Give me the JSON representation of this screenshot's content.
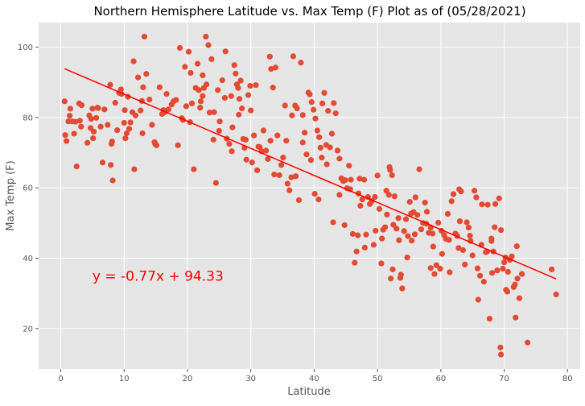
{
  "chart_data": {
    "type": "scatter",
    "title": "Northern Hemisphere Latitude vs. Max Temp (F) Plot as of (05/28/2021)",
    "xlabel": "Latitude",
    "ylabel": "Max Temp (F)",
    "xlim": [
      -3.5,
      82
    ],
    "ylim": [
      8.5,
      107
    ],
    "xticks": [
      0,
      10,
      20,
      30,
      40,
      50,
      60,
      70,
      80
    ],
    "yticks": [
      20,
      40,
      60,
      80,
      100
    ],
    "grid": true,
    "background": "#e5e5e5",
    "point_color": "#e24a33",
    "line_color": "#ff0000",
    "regression": {
      "slope": -0.77,
      "intercept": 94.33,
      "x_range": [
        0.6,
        78.2
      ]
    },
    "equation_label": "y = -0.77x + 94.33",
    "equation_position": {
      "x": 5,
      "y": 35
    },
    "points": [
      [
        0.6,
        84.6
      ],
      [
        0.7,
        75.0
      ],
      [
        0.9,
        73.3
      ],
      [
        1.2,
        78.9
      ],
      [
        1.4,
        80.5
      ],
      [
        1.5,
        82.5
      ],
      [
        1.8,
        78.9
      ],
      [
        2.1,
        75.4
      ],
      [
        2.3,
        78.8
      ],
      [
        2.5,
        66.1
      ],
      [
        2.9,
        84.0
      ],
      [
        3.3,
        83.5
      ],
      [
        3.2,
        77.4
      ],
      [
        4.2,
        72.8
      ],
      [
        4.5,
        80.6
      ],
      [
        4.7,
        77.0
      ],
      [
        4.8,
        79.6
      ],
      [
        5.0,
        82.5
      ],
      [
        5.1,
        74.1
      ],
      [
        5.2,
        76.0
      ],
      [
        5.6,
        79.9
      ],
      [
        5.9,
        82.7
      ],
      [
        6.6,
        67.2
      ],
      [
        6.9,
        82.3
      ],
      [
        7.4,
        77.9
      ],
      [
        7.8,
        89.3
      ],
      [
        7.9,
        66.5
      ],
      [
        8.0,
        72.5
      ],
      [
        8.1,
        73.2
      ],
      [
        8.2,
        62.1
      ],
      [
        8.6,
        84.2
      ],
      [
        8.9,
        76.4
      ],
      [
        9.2,
        87.0
      ],
      [
        9.5,
        88.0
      ],
      [
        10.1,
        82.1
      ],
      [
        10.2,
        74.1
      ],
      [
        10.6,
        85.9
      ],
      [
        10.8,
        76.8
      ],
      [
        10.4,
        75.5
      ],
      [
        11.0,
        78.6
      ],
      [
        11.5,
        96.0
      ],
      [
        11.3,
        81.5
      ],
      [
        11.8,
        80.6
      ],
      [
        11.6,
        65.3
      ],
      [
        12.2,
        91.4
      ],
      [
        12.6,
        82.0
      ],
      [
        12.8,
        84.7
      ],
      [
        13.2,
        103.0
      ],
      [
        13.0,
        88.6
      ],
      [
        13.5,
        92.4
      ],
      [
        14.0,
        85.1
      ],
      [
        14.4,
        77.9
      ],
      [
        14.8,
        73.0
      ],
      [
        14.9,
        72.5
      ],
      [
        15.6,
        88.6
      ],
      [
        16.0,
        81.0
      ],
      [
        16.4,
        81.5
      ],
      [
        16.7,
        86.7
      ],
      [
        17.0,
        82.3
      ],
      [
        17.5,
        83.7
      ],
      [
        17.8,
        84.6
      ],
      [
        18.2,
        85.0
      ],
      [
        18.5,
        72.1
      ],
      [
        18.8,
        99.8
      ],
      [
        19.1,
        79.8
      ],
      [
        19.6,
        94.4
      ],
      [
        19.8,
        83.2
      ],
      [
        20.2,
        98.7
      ],
      [
        20.5,
        92.7
      ],
      [
        20.7,
        84.0
      ],
      [
        20.4,
        78.7
      ],
      [
        21.0,
        65.3
      ],
      [
        21.3,
        88.4
      ],
      [
        21.6,
        95.3
      ],
      [
        21.8,
        87.8
      ],
      [
        22.1,
        84.6
      ],
      [
        22.4,
        92.0
      ],
      [
        22.6,
        88.4
      ],
      [
        22.9,
        103.0
      ],
      [
        23.0,
        89.4
      ],
      [
        23.3,
        100.6
      ],
      [
        23.5,
        81.4
      ],
      [
        23.8,
        96.6
      ],
      [
        24.2,
        81.5
      ],
      [
        24.5,
        61.4
      ],
      [
        24.8,
        87.8
      ],
      [
        25.1,
        78.9
      ],
      [
        25.0,
        76.2
      ],
      [
        25.5,
        90.6
      ],
      [
        25.9,
        85.6
      ],
      [
        26.0,
        98.8
      ],
      [
        26.2,
        74.0
      ],
      [
        26.6,
        72.5
      ],
      [
        27.0,
        70.4
      ],
      [
        27.4,
        94.9
      ],
      [
        27.6,
        92.5
      ],
      [
        27.8,
        89.4
      ],
      [
        28.0,
        88.4
      ],
      [
        28.2,
        85.3
      ],
      [
        28.4,
        90.5
      ],
      [
        28.1,
        80.8
      ],
      [
        28.6,
        82.6
      ],
      [
        28.8,
        73.9
      ],
      [
        29.0,
        71.4
      ],
      [
        29.3,
        68.0
      ],
      [
        29.6,
        86.4
      ],
      [
        29.9,
        89.0
      ],
      [
        30.2,
        67.2
      ],
      [
        30.5,
        74.9
      ],
      [
        30.8,
        89.2
      ],
      [
        31.0,
        65.0
      ],
      [
        31.4,
        71.6
      ],
      [
        31.7,
        70.4
      ],
      [
        32.0,
        76.3
      ],
      [
        32.4,
        70.6
      ],
      [
        32.7,
        68.2
      ],
      [
        33.0,
        97.3
      ],
      [
        33.2,
        93.8
      ],
      [
        33.5,
        88.5
      ],
      [
        33.7,
        63.8
      ],
      [
        33.9,
        94.2
      ],
      [
        34.2,
        74.9
      ],
      [
        34.5,
        63.6
      ],
      [
        34.8,
        66.5
      ],
      [
        35.1,
        68.6
      ],
      [
        35.4,
        83.4
      ],
      [
        35.6,
        73.4
      ],
      [
        35.8,
        61.2
      ],
      [
        36.1,
        59.3
      ],
      [
        36.4,
        63.0
      ],
      [
        36.7,
        97.4
      ],
      [
        37.0,
        83.4
      ],
      [
        37.3,
        82.6
      ],
      [
        37.6,
        56.5
      ],
      [
        37.9,
        95.6
      ],
      [
        38.2,
        80.7
      ],
      [
        38.5,
        75.7
      ],
      [
        38.8,
        69.5
      ],
      [
        39.1,
        87.1
      ],
      [
        39.3,
        86.6
      ],
      [
        39.6,
        84.4
      ],
      [
        39.9,
        82.2
      ],
      [
        40.2,
        79.7
      ],
      [
        40.5,
        76.3
      ],
      [
        40.8,
        74.4
      ],
      [
        41.0,
        71.4
      ],
      [
        41.3,
        84.0
      ],
      [
        41.6,
        87.0
      ],
      [
        41.9,
        72.2
      ],
      [
        42.2,
        81.9
      ],
      [
        42.5,
        71.5
      ],
      [
        42.8,
        75.4
      ],
      [
        43.1,
        84.1
      ],
      [
        43.4,
        81.2
      ],
      [
        43.7,
        70.6
      ],
      [
        44.0,
        68.3
      ],
      [
        44.3,
        62.7
      ],
      [
        44.6,
        61.9
      ],
      [
        44.9,
        62.2
      ],
      [
        45.2,
        59.9
      ],
      [
        45.5,
        66.3
      ],
      [
        45.8,
        62.3
      ],
      [
        46.1,
        46.9
      ],
      [
        46.4,
        38.7
      ],
      [
        46.7,
        41.9
      ],
      [
        47.0,
        58.4
      ],
      [
        47.3,
        54.9
      ],
      [
        47.6,
        56.7
      ],
      [
        47.9,
        62.3
      ],
      [
        48.2,
        46.7
      ],
      [
        48.5,
        57.4
      ],
      [
        48.8,
        55.4
      ],
      [
        49.1,
        56.2
      ],
      [
        49.4,
        43.8
      ],
      [
        49.7,
        47.8
      ],
      [
        50.0,
        63.5
      ],
      [
        50.3,
        54.0
      ],
      [
        50.6,
        38.5
      ],
      [
        50.9,
        48.1
      ],
      [
        51.2,
        48.8
      ],
      [
        51.5,
        52.4
      ],
      [
        51.8,
        58.0
      ],
      [
        52.1,
        34.2
      ],
      [
        52.4,
        36.8
      ],
      [
        52.7,
        57.6
      ],
      [
        53.0,
        48.4
      ],
      [
        53.3,
        51.4
      ],
      [
        53.6,
        34.4
      ],
      [
        53.9,
        31.4
      ],
      [
        54.2,
        47.7
      ],
      [
        54.5,
        51.1
      ],
      [
        54.8,
        46.3
      ],
      [
        55.1,
        56.0
      ],
      [
        55.4,
        45.0
      ],
      [
        55.7,
        53.1
      ],
      [
        56.0,
        57.3
      ],
      [
        56.3,
        52.3
      ],
      [
        56.6,
        65.3
      ],
      [
        56.9,
        48.2
      ],
      [
        57.2,
        50.0
      ],
      [
        57.5,
        55.8
      ],
      [
        57.8,
        53.2
      ],
      [
        58.1,
        47.2
      ],
      [
        58.4,
        48.7
      ],
      [
        58.7,
        47.0
      ],
      [
        59.0,
        35.5
      ],
      [
        59.3,
        38.0
      ],
      [
        59.6,
        50.1
      ],
      [
        59.9,
        37.0
      ],
      [
        60.2,
        41.2
      ],
      [
        60.5,
        46.6
      ],
      [
        60.8,
        45.5
      ],
      [
        61.1,
        52.6
      ],
      [
        61.4,
        36.0
      ],
      [
        61.7,
        56.2
      ],
      [
        62.0,
        58.2
      ],
      [
        62.3,
        47.0
      ],
      [
        62.6,
        46.3
      ],
      [
        62.9,
        59.6
      ],
      [
        63.2,
        59.0
      ],
      [
        63.5,
        42.3
      ],
      [
        63.8,
        38.2
      ],
      [
        64.1,
        50.2
      ],
      [
        64.4,
        48.7
      ],
      [
        64.7,
        44.9
      ],
      [
        65.0,
        40.8
      ],
      [
        65.3,
        59.2
      ],
      [
        65.6,
        57.3
      ],
      [
        65.9,
        28.2
      ],
      [
        66.2,
        35.0
      ],
      [
        66.5,
        55.3
      ],
      [
        66.8,
        33.3
      ],
      [
        67.1,
        41.7
      ],
      [
        67.4,
        55.2
      ],
      [
        67.7,
        22.8
      ],
      [
        68.0,
        44.9
      ],
      [
        68.3,
        41.9
      ],
      [
        68.6,
        55.4
      ],
      [
        68.9,
        36.5
      ],
      [
        69.2,
        57.0
      ],
      [
        69.5,
        48.0
      ],
      [
        69.8,
        37.0
      ],
      [
        69.4,
        14.6
      ],
      [
        69.5,
        12.6
      ],
      [
        70.0,
        38.8
      ],
      [
        70.3,
        31.0
      ],
      [
        70.6,
        36.1
      ],
      [
        70.9,
        39.5
      ],
      [
        71.2,
        40.5
      ],
      [
        71.5,
        31.8
      ],
      [
        71.8,
        23.1
      ],
      [
        72.1,
        34.2
      ],
      [
        72.4,
        28.6
      ],
      [
        72.8,
        35.5
      ],
      [
        73.7,
        16.0
      ],
      [
        77.5,
        36.8
      ],
      [
        78.2,
        29.7
      ],
      [
        5.8,
        82.8
      ],
      [
        9.6,
        86.7
      ],
      [
        15.1,
        72.1
      ],
      [
        16.2,
        82.1
      ],
      [
        22.4,
        86.1
      ],
      [
        26.9,
        86.1
      ],
      [
        29.2,
        73.7
      ],
      [
        31.2,
        71.7
      ],
      [
        36.5,
        80.6
      ],
      [
        38.2,
        72.9
      ],
      [
        40.1,
        58.3
      ],
      [
        40.7,
        56.7
      ],
      [
        41.2,
        68.6
      ],
      [
        43.0,
        50.2
      ],
      [
        44.8,
        49.4
      ],
      [
        47.2,
        62.6
      ],
      [
        49.6,
        57.4
      ],
      [
        51.4,
        59.2
      ],
      [
        51.9,
        65.9
      ],
      [
        52.0,
        65.1
      ],
      [
        52.3,
        63.6
      ],
      [
        53.4,
        45.1
      ],
      [
        55.3,
        52.7
      ],
      [
        55.9,
        46.8
      ],
      [
        57.7,
        49.8
      ],
      [
        58.8,
        43.3
      ],
      [
        60.1,
        47.8
      ],
      [
        61.3,
        45.2
      ],
      [
        62.8,
        42.9
      ],
      [
        64.6,
        46.4
      ],
      [
        65.8,
        37.1
      ],
      [
        66.4,
        43.8
      ],
      [
        67.3,
        41.9
      ],
      [
        68.1,
        35.8
      ],
      [
        68.5,
        48.8
      ],
      [
        70.5,
        30.5
      ],
      [
        71.7,
        32.5
      ],
      [
        72.0,
        43.4
      ],
      [
        70.2,
        40.2
      ],
      [
        58.4,
        37.2
      ],
      [
        54.7,
        40.2
      ],
      [
        53.7,
        35.3
      ],
      [
        50.7,
        45.6
      ],
      [
        48.0,
        43.0
      ],
      [
        46.9,
        46.5
      ],
      [
        45.7,
        59.6
      ],
      [
        42.0,
        66.7
      ],
      [
        39.5,
        67.9
      ],
      [
        37.1,
        63.3
      ],
      [
        33.1,
        73.4
      ],
      [
        27.1,
        77.2
      ],
      [
        24.1,
        73.7
      ],
      [
        19.3,
        79.3
      ],
      [
        12.9,
        75.5
      ],
      [
        6.3,
        77.4
      ],
      [
        3.0,
        79.1
      ],
      [
        10.0,
        78.5
      ],
      [
        22.0,
        82.8
      ],
      [
        30.0,
        82.0
      ],
      [
        44.0,
        58.0
      ],
      [
        52.5,
        49.5
      ],
      [
        63.0,
        50.5
      ],
      [
        68.0,
        45.6
      ]
    ]
  }
}
